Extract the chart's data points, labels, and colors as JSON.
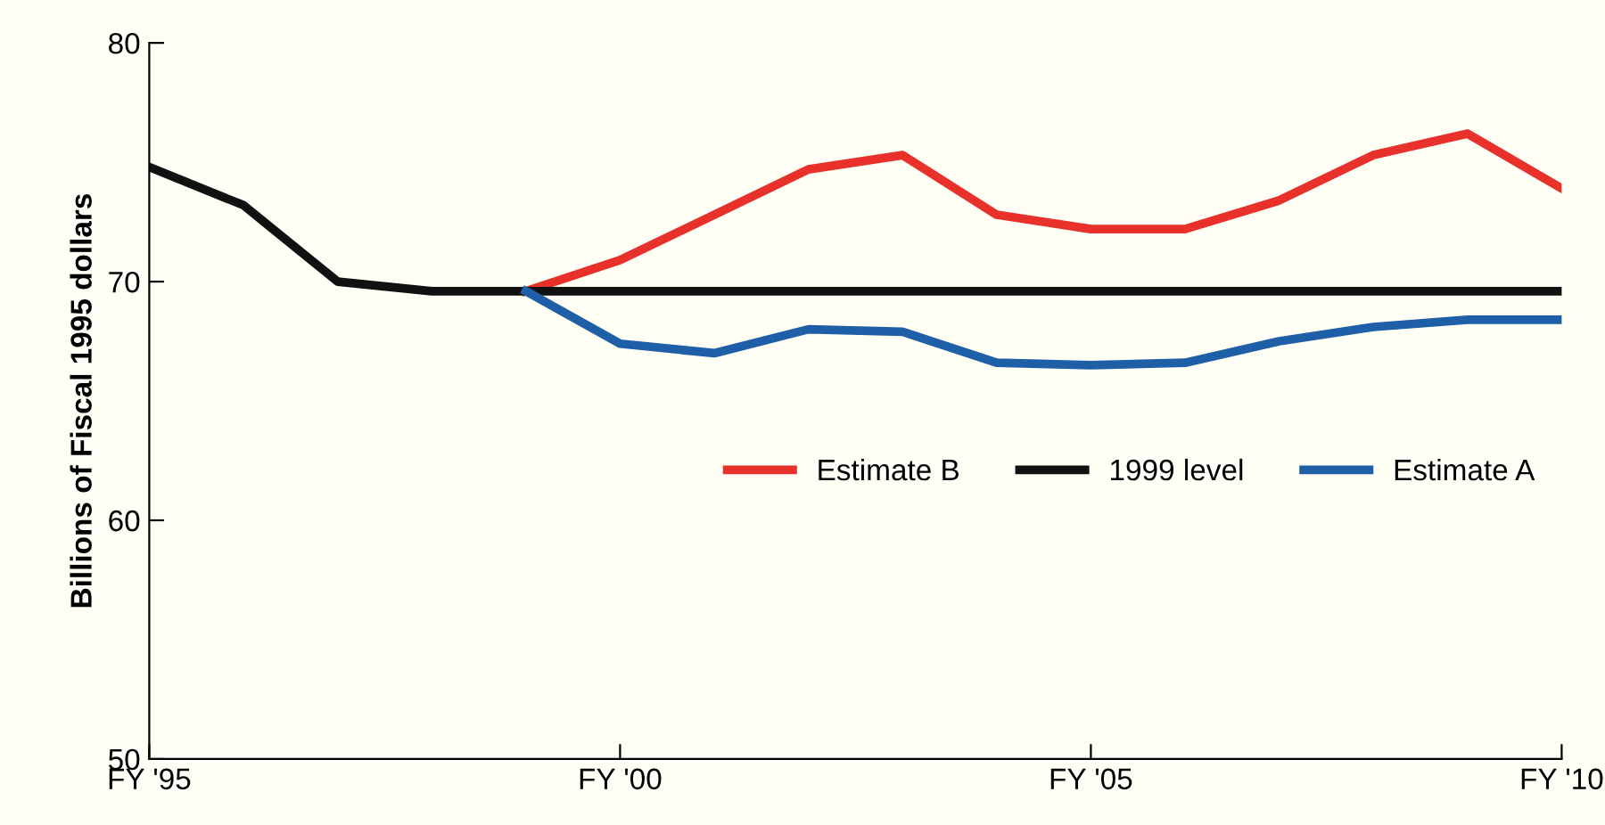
{
  "chart_data": {
    "type": "line",
    "ylabel": "Billions of Fiscal 1995 dollars",
    "categories": [
      "FY '95",
      null,
      null,
      null,
      null,
      "FY '00",
      null,
      null,
      null,
      null,
      "FY '05",
      null,
      null,
      null,
      null,
      "FY '10"
    ],
    "series": [
      {
        "name": "Estimate B",
        "color": "#e8312a",
        "values": [
          null,
          null,
          null,
          null,
          69.6,
          70.9,
          72.8,
          74.7,
          75.3,
          72.8,
          72.2,
          72.2,
          73.4,
          75.3,
          76.2,
          73.9
        ]
      },
      {
        "name": "1999 level",
        "color": "#111111",
        "values": [
          74.8,
          73.2,
          70.0,
          69.6,
          69.6,
          69.6,
          69.6,
          69.6,
          69.6,
          69.6,
          69.6,
          69.6,
          69.6,
          69.6,
          69.6,
          69.6
        ]
      },
      {
        "name": "Estimate A",
        "color": "#1f5fa8",
        "values": [
          null,
          null,
          null,
          null,
          69.6,
          67.4,
          67.0,
          68.0,
          67.9,
          66.6,
          66.5,
          66.6,
          67.5,
          68.1,
          68.4,
          68.4
        ]
      }
    ],
    "ylim": [
      50,
      80
    ],
    "yticks": [
      50,
      60,
      70,
      80
    ],
    "grid": false,
    "legend": "center right",
    "marker": "none",
    "line_style": "solid"
  }
}
